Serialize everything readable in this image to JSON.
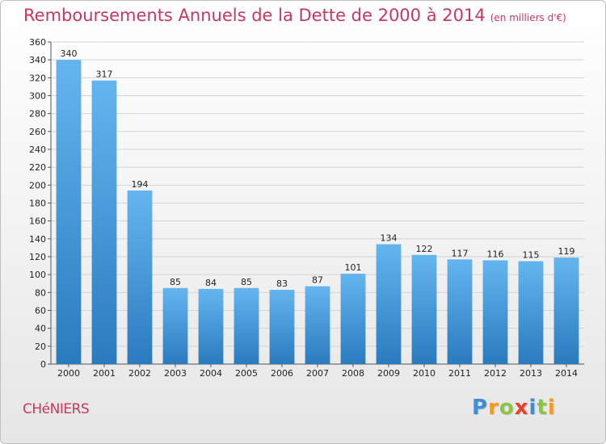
{
  "title": "Remboursements Annuels de la Dette de 2000 à 2014",
  "subtitle": "(en milliers d'€)",
  "commune": "CHéNIERS",
  "logo": {
    "letters": [
      "P",
      "r",
      "o",
      "x",
      "i",
      "t",
      "i"
    ],
    "colors": [
      "#3a8fd6",
      "#f29b1f",
      "#8cc63f",
      "#e8412c",
      "#3a8fd6",
      "#8cc63f",
      "#f29b1f"
    ]
  },
  "colors": {
    "bar_top": "#64b5ef",
    "bar_bottom": "#2a7bbf",
    "title": "#c8385e"
  },
  "chart_data": {
    "type": "bar",
    "categories": [
      "2000",
      "2001",
      "2002",
      "2003",
      "2004",
      "2005",
      "2006",
      "2007",
      "2008",
      "2009",
      "2010",
      "2011",
      "2012",
      "2013",
      "2014"
    ],
    "values": [
      340,
      317,
      194,
      85,
      84,
      85,
      83,
      87,
      101,
      134,
      122,
      117,
      116,
      115,
      119
    ],
    "title": "Remboursements Annuels de la Dette de 2000 à 2014",
    "ylim": [
      0,
      360
    ],
    "yticks": [
      0,
      20,
      40,
      60,
      80,
      100,
      120,
      140,
      160,
      180,
      200,
      220,
      240,
      260,
      280,
      300,
      320,
      340,
      360
    ],
    "grid": true,
    "data_labels": true
  }
}
